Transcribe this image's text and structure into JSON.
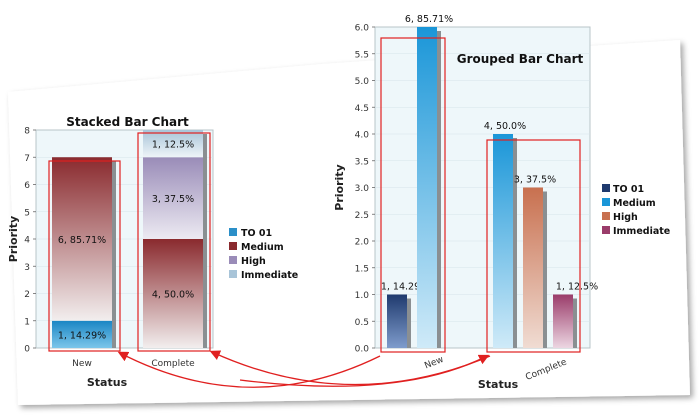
{
  "chart_data": [
    {
      "type": "bar",
      "stacked": true,
      "title": "Stacked Bar Chart",
      "xlabel": "Status",
      "ylabel": "Priority",
      "ylim": [
        0,
        8
      ],
      "yticks": [
        "0",
        "1",
        "2",
        "3",
        "4",
        "5",
        "6",
        "7",
        "8"
      ],
      "categories": [
        "New",
        "Complete"
      ],
      "series": [
        {
          "name": "TO 01",
          "values": [
            1,
            0
          ],
          "labels": [
            "1, 14.29%",
            ""
          ]
        },
        {
          "name": "Medium",
          "values": [
            6,
            4
          ],
          "labels": [
            "6, 85.71%",
            "4, 50.0%"
          ]
        },
        {
          "name": "High",
          "values": [
            0,
            3
          ],
          "labels": [
            "",
            "3, 37.5%"
          ]
        },
        {
          "name": "Immediate",
          "values": [
            0,
            1
          ],
          "labels": [
            "",
            "1, 12.5%"
          ]
        }
      ],
      "grid": true,
      "legend": "right"
    },
    {
      "type": "bar",
      "stacked": false,
      "title": "Grouped Bar Chart",
      "xlabel": "Status",
      "ylabel": "Priority",
      "ylim": [
        0,
        6
      ],
      "yticks": [
        "0.0",
        "0.5",
        "1.0",
        "1.5",
        "2.0",
        "2.5",
        "3.0",
        "3.5",
        "4.0",
        "4.5",
        "5.0",
        "5.5",
        "6.0"
      ],
      "categories": [
        "New",
        "Complete"
      ],
      "series": [
        {
          "name": "TO 01",
          "values": [
            1,
            0
          ],
          "labels": [
            "1, 14.29%",
            ""
          ]
        },
        {
          "name": "Medium",
          "values": [
            6,
            4
          ],
          "labels": [
            "6, 85.71%",
            "4, 50.0%"
          ]
        },
        {
          "name": "High",
          "values": [
            0,
            3
          ],
          "labels": [
            "",
            "3, 37.5%"
          ]
        },
        {
          "name": "Immediate",
          "values": [
            0,
            1
          ],
          "labels": [
            "",
            "1, 12.5%"
          ]
        }
      ],
      "grid": true,
      "legend": "right"
    }
  ],
  "colors": {
    "to01": "#1f3a6e",
    "medium_stacked": "#8a2a2e",
    "medium_grouped": "#1a96d8",
    "high_stacked": "#9a8cb8",
    "high_grouped": "#c8704f",
    "immediate_stacked": "#a8c4d8",
    "immediate_grouped": "#9a3c6a",
    "highlight": "#e02020",
    "plot_bg": "#eef7fa"
  }
}
